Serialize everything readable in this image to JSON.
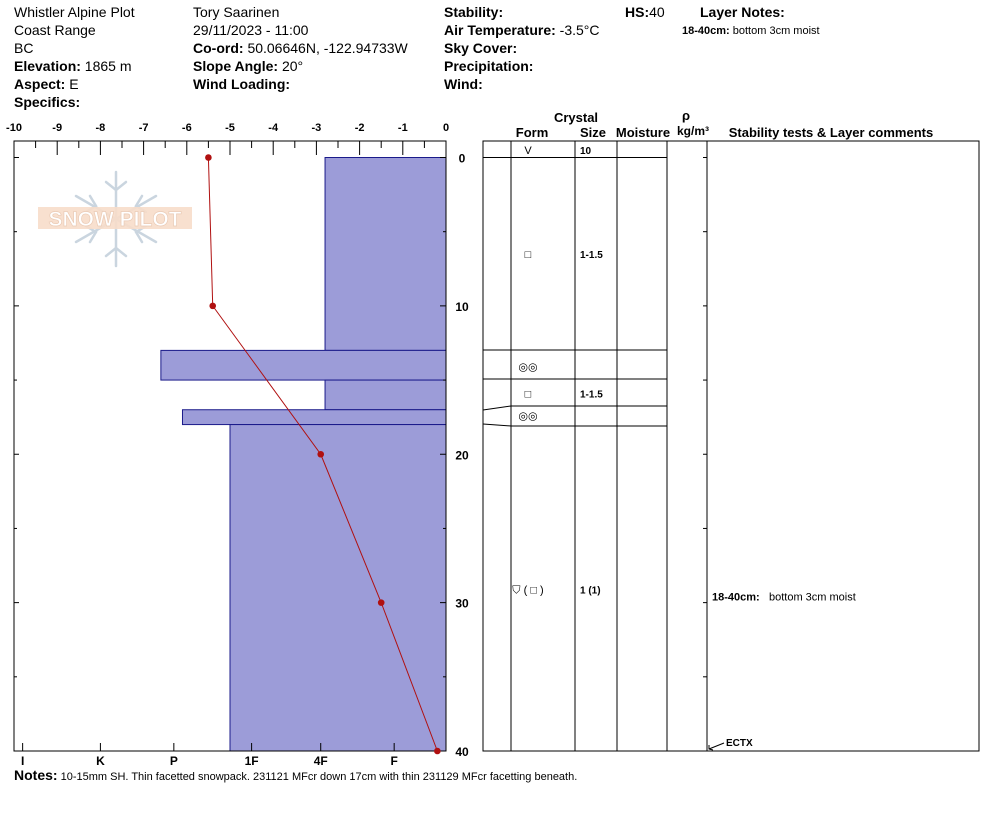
{
  "header": {
    "col1": {
      "location": "Whistler Alpine Plot",
      "range": "Coast Range",
      "province": "BC",
      "elevation_label": "Elevation:",
      "elevation_value": "1865 m",
      "aspect_label": "Aspect:",
      "aspect_value": "E",
      "specifics_label": "Specifics:"
    },
    "col2": {
      "observer": "Tory Saarinen",
      "datetime": "29/11/2023 - 11:00",
      "coord_label": "Co-ord:",
      "coord_value": "50.06646N, -122.94733W",
      "slope_label": "Slope Angle:",
      "slope_value": "20°",
      "wind_loading_label": "Wind Loading:"
    },
    "col3": {
      "stability_label": "Stability:",
      "air_temp_label": "Air Temperature:",
      "air_temp_value": "-3.5°C",
      "sky_label": "Sky Cover:",
      "precip_label": "Precipitation:",
      "wind_label": "Wind:"
    },
    "hs_label": "HS:",
    "hs_value": "40",
    "layer_notes_title": "Layer Notes:",
    "layer_note_range": "18-40cm:",
    "layer_note_text": "bottom 3cm moist"
  },
  "logo_text": "SNOW PILOT",
  "table_headers": {
    "crystal": "Crystal",
    "form": "Form",
    "size": "Size",
    "moisture": "Moisture",
    "rho": "ρ",
    "density_unit": "kg/m³",
    "stability": "Stability tests & Layer comments"
  },
  "chart_data": {
    "type": "snow_profile",
    "temperature_axis": {
      "ticks": [
        "-10",
        "-9",
        "-8",
        "-7",
        "-6",
        "-5",
        "-4",
        "-3",
        "-2",
        "-1",
        "0"
      ],
      "xlim": [
        -10,
        0
      ]
    },
    "depth_axis": {
      "ticks": [
        "0",
        "10",
        "20",
        "30",
        "40"
      ],
      "ylim": [
        0,
        40
      ]
    },
    "hardness_axis": {
      "labels": [
        "I",
        "K",
        "P",
        "1F",
        "4F",
        "F"
      ]
    },
    "temperature_profile": [
      {
        "depth": 0,
        "temp": -5.5
      },
      {
        "depth": 10,
        "temp": -5.4
      },
      {
        "depth": 20,
        "temp": -2.9
      },
      {
        "depth": 30,
        "temp": -1.5
      },
      {
        "depth": 40,
        "temp": -0.2
      }
    ],
    "hardness_layers": [
      {
        "top": 0,
        "bottom": 13,
        "value": -2.8
      },
      {
        "top": 13,
        "bottom": 15,
        "value": -6.6
      },
      {
        "top": 15,
        "bottom": 17,
        "value": -2.8
      },
      {
        "top": 17,
        "bottom": 18,
        "value": -6.1
      },
      {
        "top": 18,
        "bottom": 40,
        "value": -5.0
      }
    ],
    "layers": [
      {
        "top": 0,
        "bottom": 0,
        "form": "V",
        "size": "10",
        "label_depth": -0.5
      },
      {
        "top": 0,
        "bottom": 13,
        "form": "□",
        "size": "1-1.5",
        "label_depth": 6.5
      },
      {
        "top": 13,
        "bottom": 15,
        "form": "◎◎",
        "size": "",
        "label_depth": 14.1
      },
      {
        "top": 15,
        "bottom": 17,
        "form": "□",
        "size": "1-1.5",
        "label_depth": 15.9
      },
      {
        "top": 17,
        "bottom": 18,
        "form": "◎◎",
        "size": "",
        "label_depth": 17.4
      },
      {
        "top": 18,
        "bottom": 40,
        "form": "⛉ ( □ )",
        "size": "1 (1)",
        "label_depth": 29.1
      }
    ],
    "layer_comments": [
      {
        "depth": 29.6,
        "range": "18-40cm:",
        "text": "bottom 3cm moist"
      }
    ],
    "stability_tests": [
      {
        "depth": 40,
        "label": "ECTX"
      }
    ]
  },
  "notes": {
    "label": "Notes:",
    "text": "10-15mm SH. Thin facetted snowpack. 231121 MFcr down 17cm with thin 231129 MFcr facetting beneath."
  }
}
